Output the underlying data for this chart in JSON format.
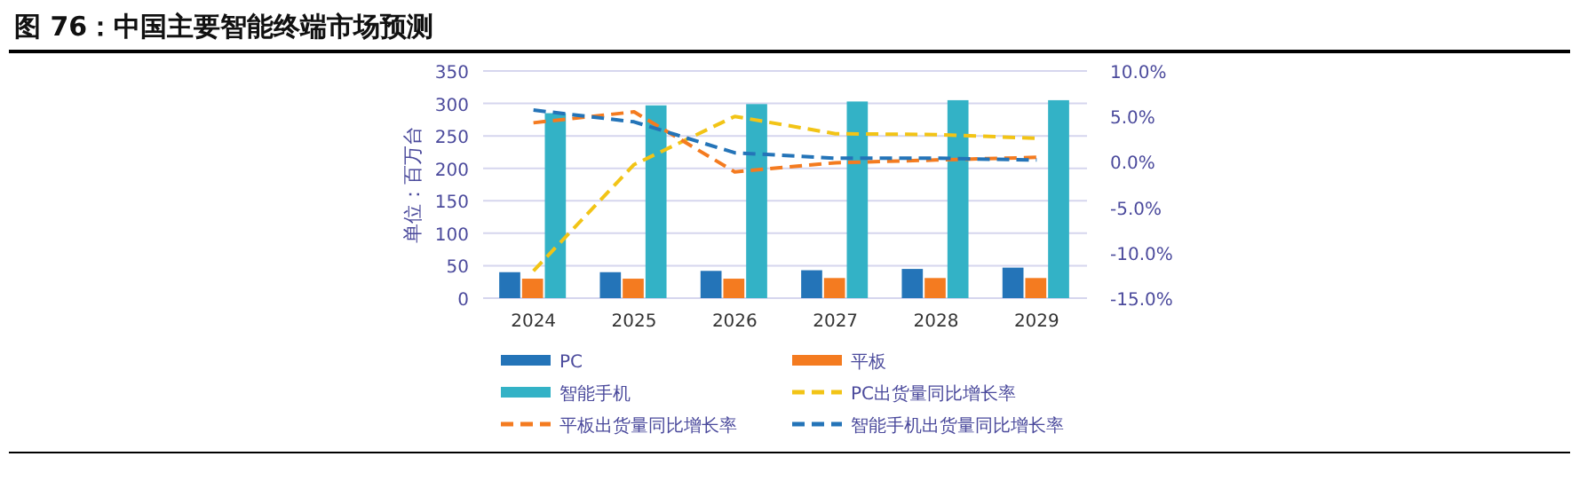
{
  "chart_data": {
    "type": "bar",
    "title": "图 76：中国主要智能终端市场预测",
    "ylabel": "单位：百万台",
    "categories": [
      "2024",
      "2025",
      "2026",
      "2027",
      "2028",
      "2029"
    ],
    "series": [
      {
        "name": "PC",
        "color": "#2474b8",
        "values": [
          40,
          40,
          42,
          43,
          45,
          47
        ]
      },
      {
        "name": "平板",
        "color": "#f47b20",
        "values": [
          30,
          30,
          30,
          31,
          31,
          31
        ]
      },
      {
        "name": "智能手机",
        "color": "#33b2c6",
        "values": [
          285,
          297,
          299,
          303,
          305,
          305
        ]
      },
      {
        "name": "PC出货量同比增长率",
        "type": "line",
        "axis": "y2",
        "line_style": "dashed",
        "color": "#f2c416",
        "values": [
          -12.0,
          -0.3,
          5.0,
          3.1,
          3.0,
          2.6
        ]
      },
      {
        "name": "平板出货量同比增长率",
        "type": "line",
        "axis": "y2",
        "line_style": "dashed",
        "color": "#f47b20",
        "values": [
          4.3,
          5.5,
          -1.1,
          -0.1,
          0.2,
          0.5
        ]
      },
      {
        "name": "智能手机出货量同比增长率",
        "type": "line",
        "axis": "y2",
        "line_style": "dashed",
        "color": "#2474b8",
        "values": [
          5.7,
          4.4,
          1.0,
          0.4,
          0.4,
          0.2
        ]
      }
    ],
    "ylim": [
      0,
      350
    ],
    "yticks": [
      0,
      50,
      100,
      150,
      200,
      250,
      300,
      350
    ],
    "y2lim": [
      -15,
      10
    ],
    "y2ticks": [
      {
        "value": -15,
        "label": "-15.0%"
      },
      {
        "value": -10,
        "label": "-10.0%"
      },
      {
        "value": -5,
        "label": "-5.0%"
      },
      {
        "value": 0,
        "label": "0.0%"
      },
      {
        "value": 5,
        "label": "5.0%"
      },
      {
        "value": 10,
        "label": "10.0%"
      }
    ],
    "grid": "y",
    "legend": "bottom"
  }
}
